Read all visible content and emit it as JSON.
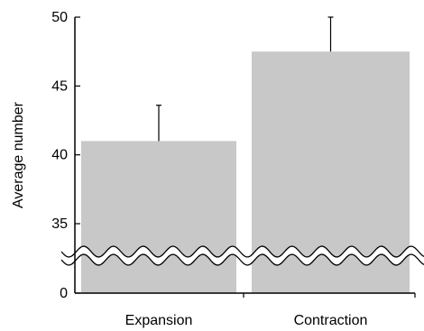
{
  "chart_data": {
    "type": "bar",
    "categories": [
      "Expansion",
      "Contraction"
    ],
    "values": [
      41.0,
      47.5
    ],
    "error_upper": [
      43.6,
      50.0
    ],
    "ylabel": "Average number",
    "xlabel": "",
    "ylim": [
      35,
      50
    ],
    "yticks": [
      "50",
      "45",
      "40",
      "35",
      "0"
    ],
    "axis_break": true,
    "bar_color": "#c8c8c8",
    "error_color": "#000000",
    "grid": false,
    "legend": "none"
  }
}
